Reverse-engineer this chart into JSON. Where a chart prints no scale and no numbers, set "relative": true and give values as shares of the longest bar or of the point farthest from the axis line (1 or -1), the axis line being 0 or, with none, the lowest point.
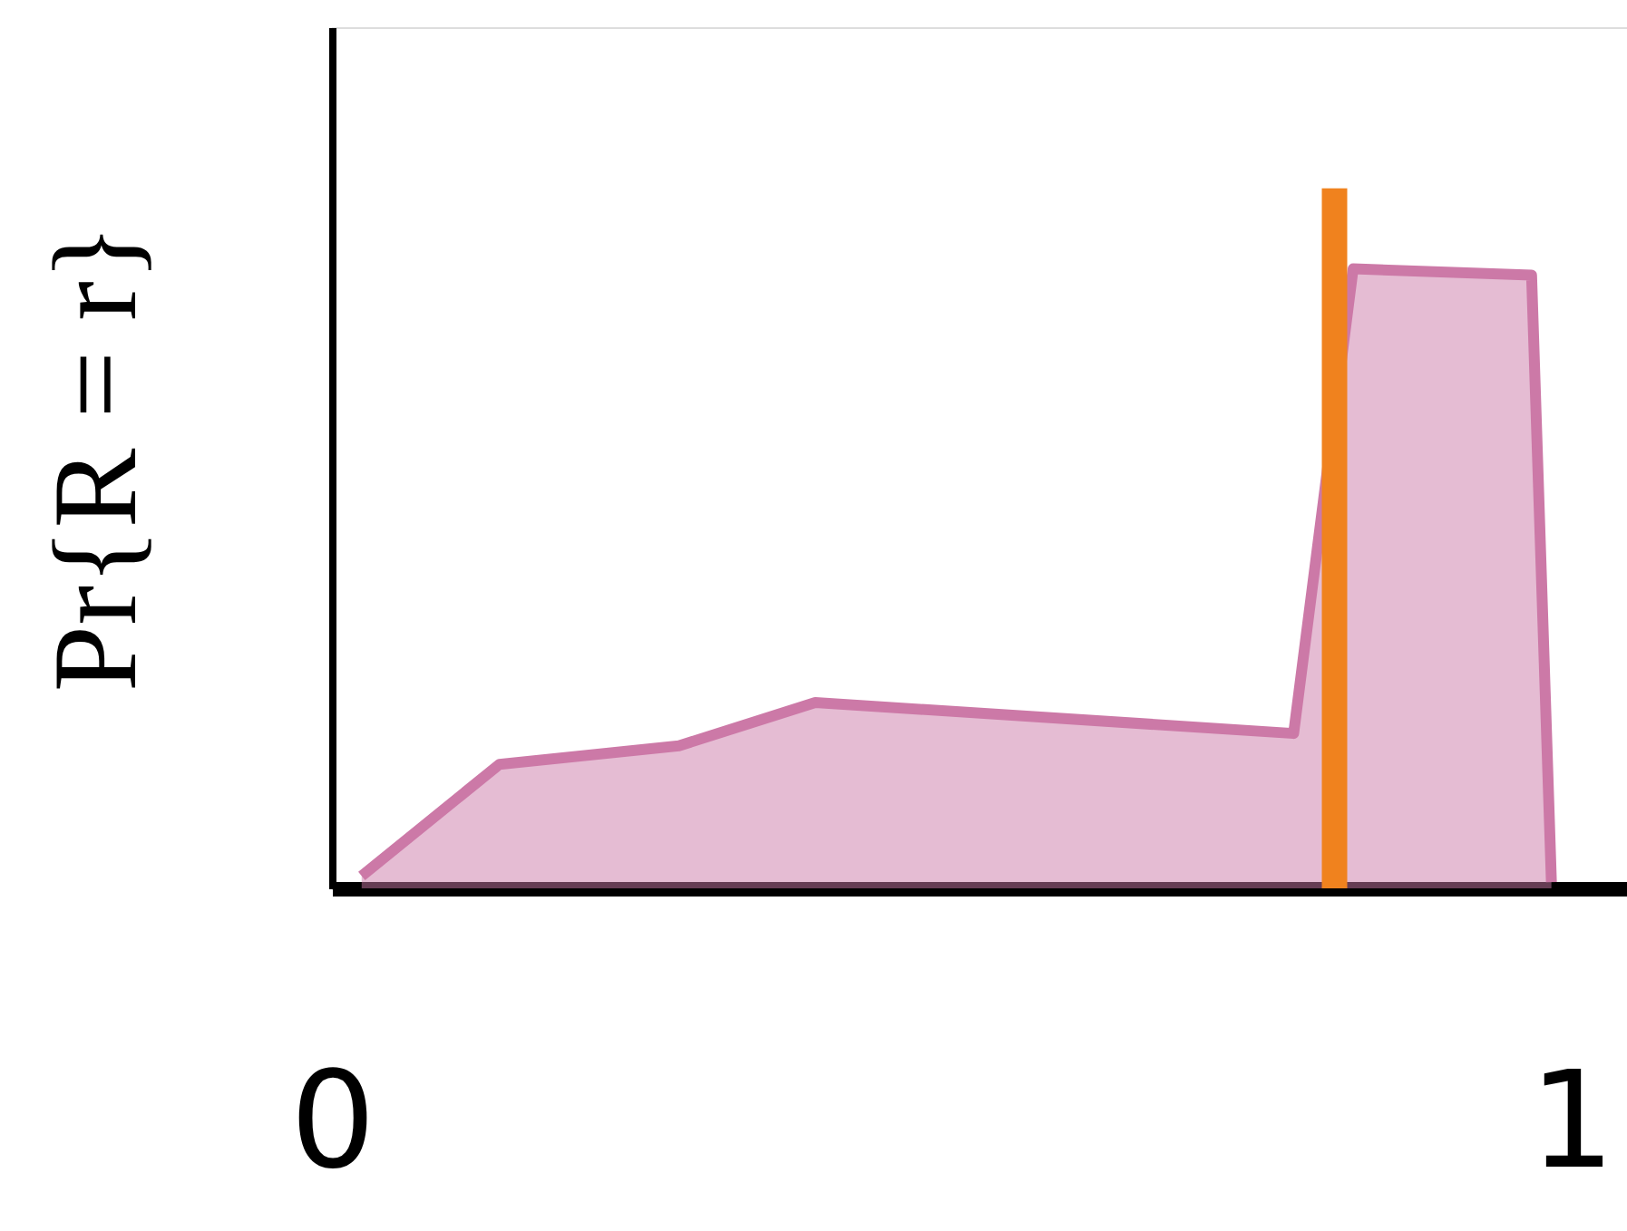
{
  "chart_data": {
    "type": "area",
    "relative": true,
    "ylabel": "Pr{R = r}",
    "x": [
      0.024,
      0.135,
      0.28,
      0.39,
      0.776,
      0.824,
      0.968,
      0.984
    ],
    "series": [
      {
        "color": "#cc79a7",
        "values": [
          0.02,
          0.2,
          0.23,
          0.3,
          0.25,
          1.0,
          0.99,
          0.01
        ]
      }
    ],
    "xlim": [
      0,
      1.045
    ],
    "xticks": [
      0,
      1
    ],
    "tick_labels": "x",
    "grid": false,
    "ref_lines": [
      {
        "axis": "x",
        "value": 0.809,
        "color": "#f0821e"
      }
    ]
  }
}
